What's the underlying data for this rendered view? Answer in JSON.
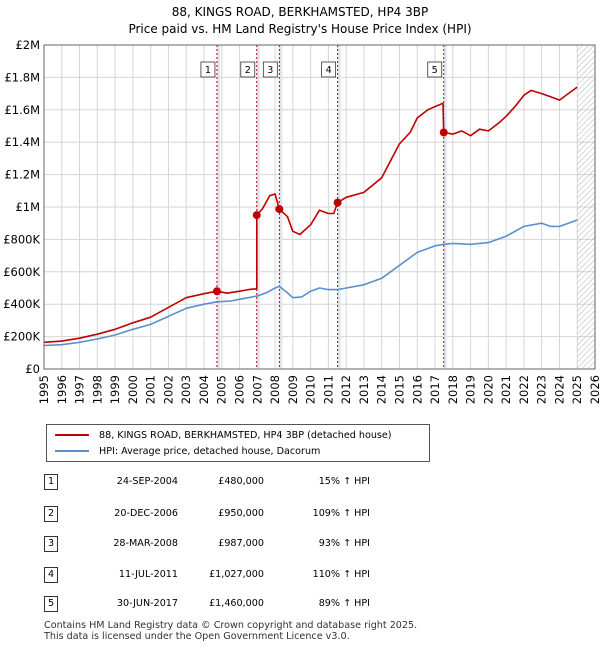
{
  "chart_data": {
    "type": "line",
    "title": "88, KINGS ROAD, BERKHAMSTED, HP4 3BP",
    "subtitle": "Price paid vs. HM Land Registry's House Price Index (HPI)",
    "xlim": [
      1995,
      2026
    ],
    "ylim": [
      0,
      2000000
    ],
    "x_ticks": [
      1995,
      1996,
      1997,
      1998,
      1999,
      2000,
      2001,
      2002,
      2003,
      2004,
      2005,
      2006,
      2007,
      2008,
      2009,
      2010,
      2011,
      2012,
      2013,
      2014,
      2015,
      2016,
      2017,
      2018,
      2019,
      2020,
      2021,
      2022,
      2023,
      2024,
      2025,
      2026
    ],
    "y_ticks": [
      {
        "value": 0,
        "label": "£0"
      },
      {
        "value": 200000,
        "label": "£200K"
      },
      {
        "value": 400000,
        "label": "£400K"
      },
      {
        "value": 600000,
        "label": "£600K"
      },
      {
        "value": 800000,
        "label": "£800K"
      },
      {
        "value": 1000000,
        "label": "£1M"
      },
      {
        "value": 1200000,
        "label": "£1.2M"
      },
      {
        "value": 1400000,
        "label": "£1.4M"
      },
      {
        "value": 1600000,
        "label": "£1.6M"
      },
      {
        "value": 1800000,
        "label": "£1.8M"
      },
      {
        "value": 2000000,
        "label": "£2M"
      }
    ],
    "forecast_from": 2025.0,
    "series": [
      {
        "name": "88, KINGS ROAD, BERKHAMSTED, HP4 3BP (detached house)",
        "color": "#c00000",
        "points": [
          [
            1995.0,
            165000
          ],
          [
            1996.0,
            172000
          ],
          [
            1997.0,
            190000
          ],
          [
            1998.0,
            215000
          ],
          [
            1999.0,
            245000
          ],
          [
            2000.0,
            285000
          ],
          [
            2001.0,
            320000
          ],
          [
            2002.0,
            380000
          ],
          [
            2003.0,
            440000
          ],
          [
            2004.0,
            465000
          ],
          [
            2004.73,
            480000
          ],
          [
            2005.3,
            468000
          ],
          [
            2006.0,
            480000
          ],
          [
            2006.5,
            490000
          ],
          [
            2006.97,
            495000
          ],
          [
            2006.97,
            950000
          ],
          [
            2007.3,
            990000
          ],
          [
            2007.7,
            1070000
          ],
          [
            2008.0,
            1080000
          ],
          [
            2008.24,
            987000
          ],
          [
            2008.7,
            940000
          ],
          [
            2009.0,
            850000
          ],
          [
            2009.4,
            830000
          ],
          [
            2010.0,
            890000
          ],
          [
            2010.5,
            980000
          ],
          [
            2011.0,
            960000
          ],
          [
            2011.3,
            960000
          ],
          [
            2011.52,
            1027000
          ],
          [
            2012.0,
            1060000
          ],
          [
            2013.0,
            1090000
          ],
          [
            2014.0,
            1180000
          ],
          [
            2015.0,
            1390000
          ],
          [
            2015.6,
            1460000
          ],
          [
            2016.0,
            1550000
          ],
          [
            2016.6,
            1600000
          ],
          [
            2017.0,
            1620000
          ],
          [
            2017.45,
            1640000
          ],
          [
            2017.49,
            1460000
          ],
          [
            2018.0,
            1450000
          ],
          [
            2018.5,
            1470000
          ],
          [
            2019.0,
            1440000
          ],
          [
            2019.5,
            1480000
          ],
          [
            2020.0,
            1470000
          ],
          [
            2020.6,
            1520000
          ],
          [
            2021.0,
            1560000
          ],
          [
            2021.5,
            1620000
          ],
          [
            2022.0,
            1690000
          ],
          [
            2022.4,
            1720000
          ],
          [
            2023.0,
            1700000
          ],
          [
            2023.5,
            1680000
          ],
          [
            2024.0,
            1660000
          ],
          [
            2024.5,
            1700000
          ],
          [
            2025.0,
            1740000
          ]
        ]
      },
      {
        "name": "HPI: Average price, detached house, Dacorum",
        "color": "#5b8fd0",
        "points": [
          [
            1995.0,
            145000
          ],
          [
            1996.0,
            150000
          ],
          [
            1997.0,
            165000
          ],
          [
            1998.0,
            185000
          ],
          [
            1999.0,
            210000
          ],
          [
            2000.0,
            245000
          ],
          [
            2001.0,
            275000
          ],
          [
            2002.0,
            325000
          ],
          [
            2003.0,
            375000
          ],
          [
            2004.0,
            400000
          ],
          [
            2004.73,
            415000
          ],
          [
            2005.5,
            420000
          ],
          [
            2006.0,
            430000
          ],
          [
            2006.97,
            450000
          ],
          [
            2007.5,
            470000
          ],
          [
            2008.0,
            500000
          ],
          [
            2008.24,
            510000
          ],
          [
            2008.7,
            470000
          ],
          [
            2009.0,
            440000
          ],
          [
            2009.5,
            445000
          ],
          [
            2010.0,
            480000
          ],
          [
            2010.5,
            500000
          ],
          [
            2011.0,
            490000
          ],
          [
            2011.52,
            490000
          ],
          [
            2012.0,
            500000
          ],
          [
            2013.0,
            520000
          ],
          [
            2014.0,
            560000
          ],
          [
            2015.0,
            640000
          ],
          [
            2016.0,
            720000
          ],
          [
            2017.0,
            760000
          ],
          [
            2017.49,
            770000
          ],
          [
            2018.0,
            775000
          ],
          [
            2019.0,
            770000
          ],
          [
            2020.0,
            780000
          ],
          [
            2021.0,
            820000
          ],
          [
            2022.0,
            880000
          ],
          [
            2023.0,
            900000
          ],
          [
            2023.5,
            880000
          ],
          [
            2024.0,
            880000
          ],
          [
            2024.5,
            900000
          ],
          [
            2025.0,
            920000
          ]
        ]
      }
    ],
    "sales": [
      {
        "num": "1",
        "x": 2004.73,
        "value": 480000,
        "date": "24-SEP-2004",
        "price": "£480,000",
        "hpi": "15% ↑ HPI"
      },
      {
        "num": "2",
        "x": 2006.97,
        "value": 950000,
        "date": "20-DEC-2006",
        "price": "£950,000",
        "hpi": "109% ↑ HPI"
      },
      {
        "num": "3",
        "x": 2008.24,
        "value": 987000,
        "date": "28-MAR-2008",
        "price": "£987,000",
        "hpi": "93% ↑ HPI"
      },
      {
        "num": "4",
        "x": 2011.52,
        "value": 1027000,
        "date": "11-JUL-2011",
        "price": "£1,027,000",
        "hpi": "110% ↑ HPI"
      },
      {
        "num": "5",
        "x": 2017.49,
        "value": 1460000,
        "date": "30-JUN-2017",
        "price": "£1,460,000",
        "hpi": "89% ↑ HPI"
      }
    ],
    "colors": {
      "property": "#c00000",
      "hpi": "#5b8fd0",
      "grid": "#d6d6d6",
      "sale_band": "#dde6f2",
      "forecast_hatch": "#aaaaaa"
    }
  },
  "legend": {
    "property_label": "88, KINGS ROAD, BERKHAMSTED, HP4 3BP (detached house)",
    "hpi_label": "HPI: Average price, detached house, Dacorum"
  },
  "footer": {
    "line1": "Contains HM Land Registry data © Crown copyright and database right 2025.",
    "line2": "This data is licensed under the Open Government Licence v3.0."
  }
}
